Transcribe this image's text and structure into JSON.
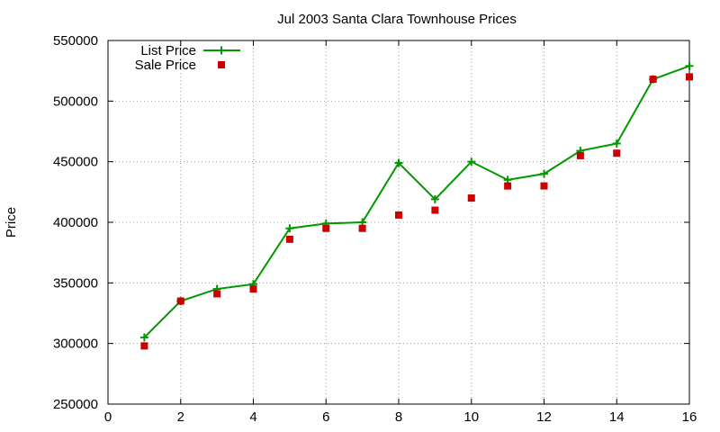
{
  "chart_data": {
    "type": "line",
    "title": "Jul 2003 Santa Clara Townhouse Prices",
    "xlabel": "",
    "ylabel": "Price",
    "xlim": [
      0,
      16
    ],
    "ylim": [
      250000,
      550000
    ],
    "xticks": [
      "0",
      "2",
      "4",
      "6",
      "8",
      "10",
      "12",
      "14",
      "16"
    ],
    "xtick_values": [
      0,
      2,
      4,
      6,
      8,
      10,
      12,
      14,
      16
    ],
    "yticks": [
      "250000",
      "300000",
      "350000",
      "400000",
      "450000",
      "500000",
      "550000"
    ],
    "ytick_values": [
      250000,
      300000,
      350000,
      400000,
      450000,
      500000,
      550000
    ],
    "grid": true,
    "legend_position": "top-left",
    "series": [
      {
        "name": "List Price",
        "style": "linespoints",
        "marker": "plus",
        "color": "#009900",
        "x": [
          1,
          2,
          3,
          4,
          5,
          6,
          7,
          8,
          9,
          10,
          11,
          12,
          13,
          14,
          15,
          16
        ],
        "values": [
          305000,
          335000,
          345000,
          349000,
          395000,
          399000,
          400000,
          449000,
          419000,
          450000,
          435000,
          440000,
          459000,
          465000,
          518000,
          529000
        ]
      },
      {
        "name": "Sale Price",
        "style": "points",
        "marker": "square",
        "color": "#cc0000",
        "x": [
          1,
          2,
          3,
          4,
          5,
          6,
          7,
          8,
          9,
          10,
          11,
          12,
          13,
          14,
          15,
          16
        ],
        "values": [
          298000,
          335000,
          341000,
          345000,
          386000,
          395000,
          395000,
          406000,
          410000,
          420000,
          430000,
          430000,
          455000,
          457000,
          518000,
          520000
        ]
      }
    ]
  }
}
